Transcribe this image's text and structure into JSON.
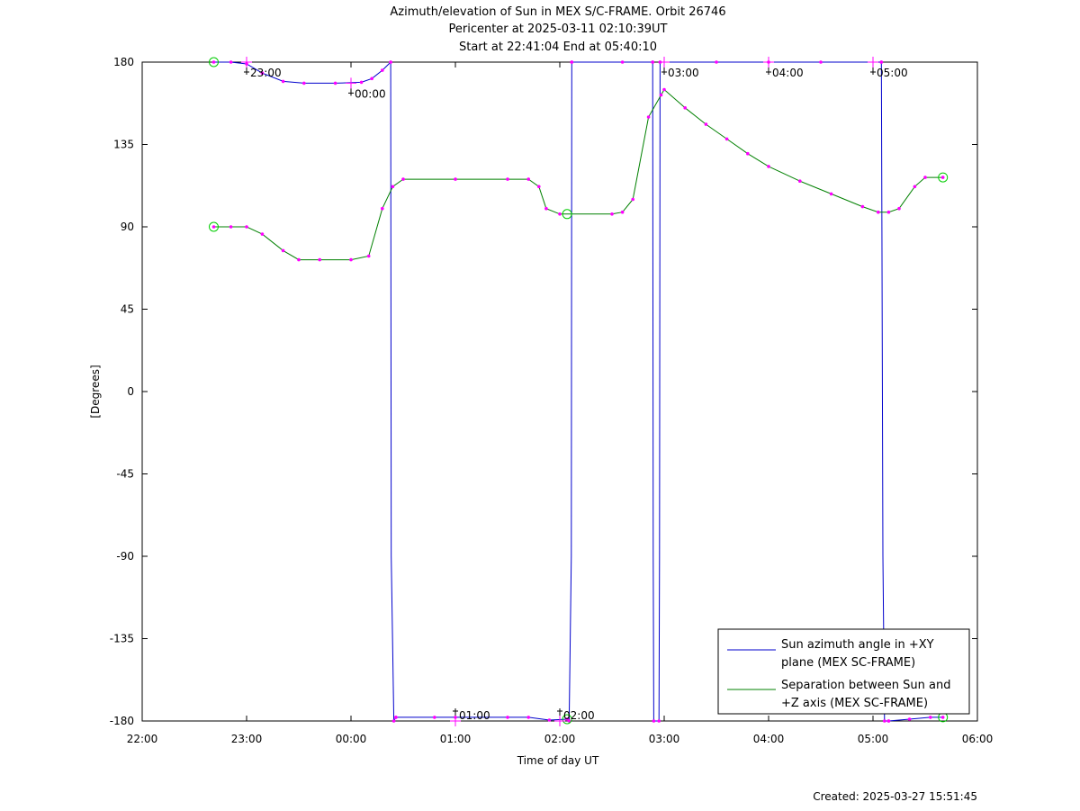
{
  "chart_data": {
    "type": "line",
    "title_lines": [
      "Azimuth/elevation of Sun in MEX S/C-FRAME.  Orbit 26746",
      "Pericenter at 2025-03-11 02:10:39UT",
      "Start at 22:41:04 End at 05:40:10"
    ],
    "xlabel": "Time of day UT",
    "ylabel": "[Degrees]",
    "xlim_hours": [
      22,
      30
    ],
    "ylim": [
      -180,
      180
    ],
    "x_tick_labels": [
      "22:00",
      "23:00",
      "00:00",
      "01:00",
      "02:00",
      "03:00",
      "04:00",
      "05:00",
      "06:00"
    ],
    "y_tick_values": [
      180,
      135,
      90,
      45,
      0,
      -45,
      -90,
      -135,
      -180
    ],
    "y_tick_labels": [
      "180",
      "135",
      "90",
      "45",
      "0",
      "-45",
      "-90",
      "-135",
      "-180"
    ],
    "footer": "Created: 2025-03-27 15:51:45",
    "legend_position": "bottom-right",
    "colors": {
      "azimuth": "#0000cc",
      "separation": "#008000",
      "marker": "#ff00ff",
      "endpoint": "#00cc00"
    },
    "hour_annotations": [
      {
        "label": "23:00",
        "x": 23.0,
        "y": 180
      },
      {
        "label": "00:00",
        "x": 24.0,
        "y": 168.5
      },
      {
        "label": "01:00",
        "x": 25.0,
        "y": -180
      },
      {
        "label": "02:00",
        "x": 26.0,
        "y": -180
      },
      {
        "label": "03:00",
        "x": 27.0,
        "y": 180
      },
      {
        "label": "04:00",
        "x": 28.0,
        "y": 180
      },
      {
        "label": "05:00",
        "x": 29.0,
        "y": 180
      }
    ],
    "series": [
      {
        "name": "Sun azimuth angle in +XY plane (MEX SC-FRAME)",
        "legend_lines": [
          "Sun azimuth angle in +XY",
          "plane (MEX SC-FRAME)"
        ],
        "color": "#0000cc",
        "segments": [
          [
            [
              22.685,
              180
            ],
            [
              22.85,
              180
            ],
            [
              23.0,
              179
            ],
            [
              23.15,
              174
            ],
            [
              23.35,
              169.5
            ],
            [
              23.55,
              168.5
            ],
            [
              23.85,
              168.5
            ],
            [
              24.1,
              169
            ],
            [
              24.2,
              171
            ],
            [
              24.3,
              175.5
            ],
            [
              24.38,
              180
            ]
          ],
          [
            [
              24.38,
              180
            ],
            [
              24.385,
              -90
            ],
            [
              24.41,
              -180
            ],
            [
              24.43,
              -178
            ]
          ],
          [
            [
              24.43,
              -178
            ],
            [
              24.8,
              -178
            ],
            [
              25.0,
              -178
            ],
            [
              25.5,
              -178
            ],
            [
              25.7,
              -178
            ],
            [
              25.9,
              -179.5
            ],
            [
              26.07,
              -179
            ]
          ],
          [
            [
              26.07,
              -179
            ],
            [
              26.09,
              -180
            ],
            [
              26.11,
              -90
            ],
            [
              26.115,
              180
            ]
          ],
          [
            [
              26.115,
              180
            ],
            [
              26.6,
              180
            ],
            [
              26.89,
              180
            ]
          ],
          [
            [
              26.89,
              180
            ],
            [
              26.895,
              -90
            ],
            [
              26.9,
              -180
            ],
            [
              26.95,
              -180
            ],
            [
              26.955,
              -90
            ],
            [
              26.96,
              180
            ]
          ],
          [
            [
              26.96,
              180
            ],
            [
              27.5,
              180
            ],
            [
              28.0,
              180
            ],
            [
              28.5,
              180
            ],
            [
              29.08,
              180
            ]
          ],
          [
            [
              29.08,
              180
            ],
            [
              29.085,
              90
            ],
            [
              29.095,
              -90
            ],
            [
              29.11,
              -180
            ],
            [
              29.15,
              -180
            ]
          ],
          [
            [
              29.15,
              -180
            ],
            [
              29.35,
              -179
            ],
            [
              29.55,
              -178
            ],
            [
              29.67,
              -178
            ]
          ]
        ]
      },
      {
        "name": "Separation between Sun and +Z axis (MEX SC-FRAME)",
        "legend_lines": [
          "Separation between Sun and",
          "+Z axis (MEX SC-FRAME)"
        ],
        "color": "#008000",
        "points": [
          [
            22.685,
            90
          ],
          [
            22.85,
            90
          ],
          [
            23.0,
            90
          ],
          [
            23.15,
            86
          ],
          [
            23.35,
            77
          ],
          [
            23.5,
            72
          ],
          [
            23.7,
            72
          ],
          [
            24.0,
            72
          ],
          [
            24.17,
            74
          ],
          [
            24.3,
            100
          ],
          [
            24.4,
            112
          ],
          [
            24.5,
            116
          ],
          [
            25.0,
            116
          ],
          [
            25.5,
            116
          ],
          [
            25.7,
            116
          ],
          [
            25.8,
            112
          ],
          [
            25.87,
            100
          ],
          [
            26.0,
            97
          ],
          [
            26.5,
            97
          ],
          [
            26.6,
            98
          ],
          [
            26.7,
            105
          ],
          [
            26.85,
            150
          ],
          [
            26.97,
            162
          ],
          [
            27.0,
            165
          ],
          [
            27.2,
            155
          ],
          [
            27.4,
            146
          ],
          [
            27.6,
            138
          ],
          [
            27.8,
            130
          ],
          [
            28.0,
            123
          ],
          [
            28.3,
            115
          ],
          [
            28.6,
            108
          ],
          [
            28.9,
            101
          ],
          [
            29.05,
            98
          ],
          [
            29.15,
            98
          ],
          [
            29.25,
            100
          ],
          [
            29.4,
            112
          ],
          [
            29.5,
            117
          ],
          [
            29.67,
            117
          ]
        ]
      }
    ]
  }
}
